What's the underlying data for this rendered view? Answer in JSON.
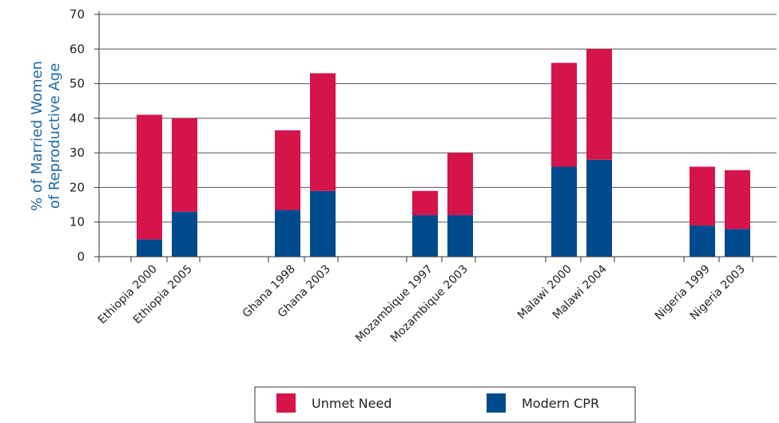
{
  "chart_data": {
    "type": "bar",
    "stacked": true,
    "ylabel_lines": [
      "% of Married Women",
      "of Reproductive Age"
    ],
    "ylim": [
      0,
      70
    ],
    "yticks": [
      0,
      10,
      20,
      30,
      40,
      50,
      60,
      70
    ],
    "grid": "horizontal",
    "legend_position": "bottom",
    "categories": [
      "Ethiopia 2000",
      "Ethiopia 2005",
      "Ghana 1998",
      "Ghana 2003",
      "Mozambique 1997",
      "Mozambique 2003",
      "Malawi 2000",
      "Malawi 2004",
      "Nigeria 1999",
      "Nigeria 2003"
    ],
    "series": [
      {
        "name": "Modern CPR",
        "color": "#004b8d",
        "values": [
          5,
          13,
          13.5,
          19,
          12,
          12,
          26,
          28,
          9,
          8
        ]
      },
      {
        "name": "Unmet Need",
        "color": "#d4144a",
        "values": [
          36,
          27,
          23,
          34,
          7,
          18,
          30,
          32,
          17,
          17
        ]
      }
    ],
    "legend_order": [
      "Unmet Need",
      "Modern CPR"
    ]
  }
}
